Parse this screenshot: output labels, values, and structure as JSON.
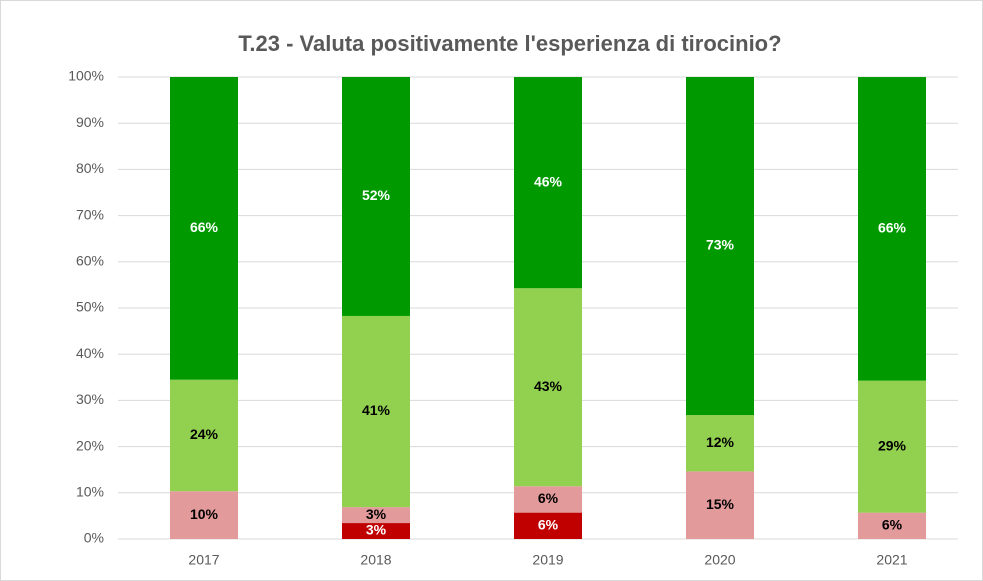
{
  "chart_data": {
    "type": "stacked_bar_100",
    "title": "T.23 - Valuta positivamente l'esperienza di tirocinio?",
    "categories": [
      "2017",
      "2018",
      "2019",
      "2020",
      "2021"
    ],
    "series": [
      {
        "color": "#c00000",
        "values": [
          null,
          3.45,
          5.71,
          null,
          null
        ],
        "value_labels": [
          null,
          "3%",
          "6%",
          null,
          null
        ],
        "label_color": "#ffffff"
      },
      {
        "color": "#e39a9b",
        "values": [
          10.34,
          3.45,
          5.71,
          14.63,
          5.71
        ],
        "value_labels": [
          "10%",
          "3%",
          "6%",
          "15%",
          "6%"
        ],
        "label_color": "#000000"
      },
      {
        "color": "#92d050",
        "values": [
          24.14,
          41.38,
          42.86,
          12.2,
          28.57
        ],
        "value_labels": [
          "24%",
          "41%",
          "43%",
          "12%",
          "29%"
        ],
        "label_color": "#000000"
      },
      {
        "color": "#009a00",
        "values": [
          65.52,
          51.72,
          45.71,
          73.17,
          65.71
        ],
        "value_labels": [
          "66%",
          "52%",
          "46%",
          "73%",
          "66%"
        ],
        "label_color": "#ffffff"
      }
    ],
    "ylim": [
      0,
      100
    ],
    "yticks": [
      {
        "value": 0,
        "label": "0%"
      },
      {
        "value": 10,
        "label": "10%"
      },
      {
        "value": 20,
        "label": "20%"
      },
      {
        "value": 30,
        "label": "30%"
      },
      {
        "value": 40,
        "label": "40%"
      },
      {
        "value": 50,
        "label": "50%"
      },
      {
        "value": 60,
        "label": "60%"
      },
      {
        "value": 70,
        "label": "70%"
      },
      {
        "value": 80,
        "label": "80%"
      },
      {
        "value": 90,
        "label": "90%"
      },
      {
        "value": 100,
        "label": "100%"
      }
    ],
    "grid": true
  }
}
